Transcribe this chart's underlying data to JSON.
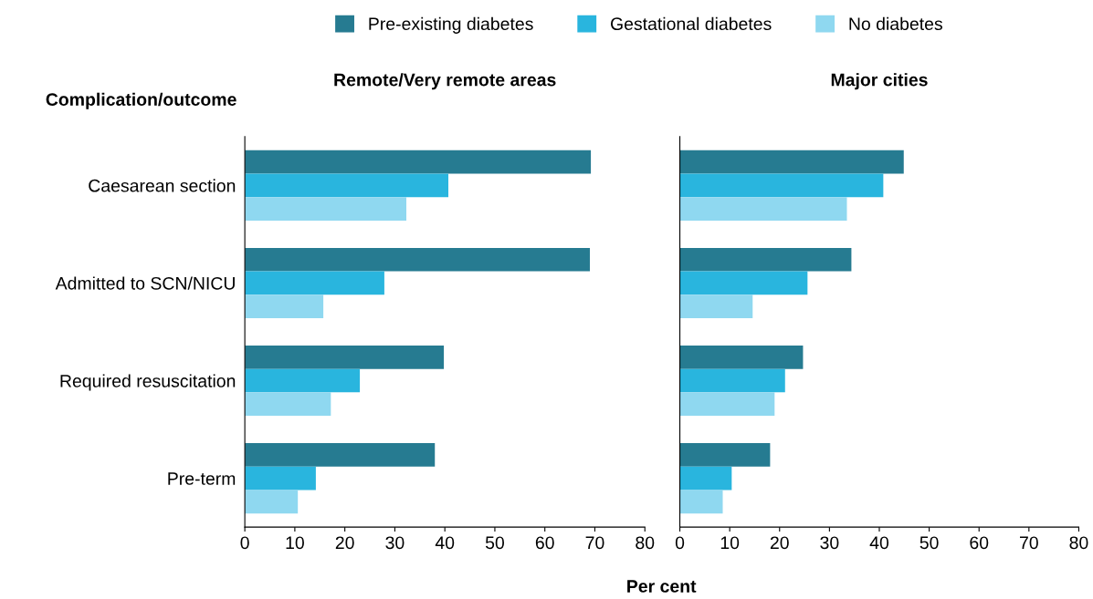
{
  "chart_data": [
    {
      "type": "bar",
      "orientation": "horizontal",
      "title": "Remote/Very remote areas",
      "ylabel": "Complication/outcome",
      "xlabel": "Per cent",
      "legend": "top",
      "categories": [
        "Caesarean section",
        "Admitted to SCN/NICU",
        "Required resuscitation",
        "Pre-term"
      ],
      "series": [
        {
          "name": "Pre-existing diabetes",
          "color": "#267b91",
          "values": [
            69.2,
            69.0,
            39.8,
            38.0
          ]
        },
        {
          "name": "Gestational diabetes",
          "color": "#29b5de",
          "values": [
            40.7,
            27.9,
            23.0,
            14.2
          ]
        },
        {
          "name": "No diabetes",
          "color": "#8fd8f0",
          "values": [
            32.3,
            15.7,
            17.2,
            10.6
          ]
        }
      ],
      "xlim": [
        0,
        80
      ],
      "xticks": [
        0,
        10,
        20,
        30,
        40,
        50,
        60,
        70,
        80
      ],
      "grid": false
    },
    {
      "type": "bar",
      "orientation": "horizontal",
      "title": "Major cities",
      "tick_labels": "x",
      "categories": [
        null,
        null,
        null,
        null
      ],
      "series": [
        {
          "color": "#267b91",
          "values": [
            44.9,
            34.4,
            24.7,
            18.1
          ]
        },
        {
          "color": "#29b5de",
          "values": [
            40.8,
            25.6,
            21.1,
            10.4
          ]
        },
        {
          "color": "#8fd8f0",
          "values": [
            33.5,
            14.6,
            19.0,
            8.6
          ]
        }
      ],
      "xlim": [
        0,
        80
      ],
      "xticks": [
        0,
        10,
        20,
        30,
        40,
        50,
        60,
        70,
        80
      ],
      "grid": false
    }
  ]
}
